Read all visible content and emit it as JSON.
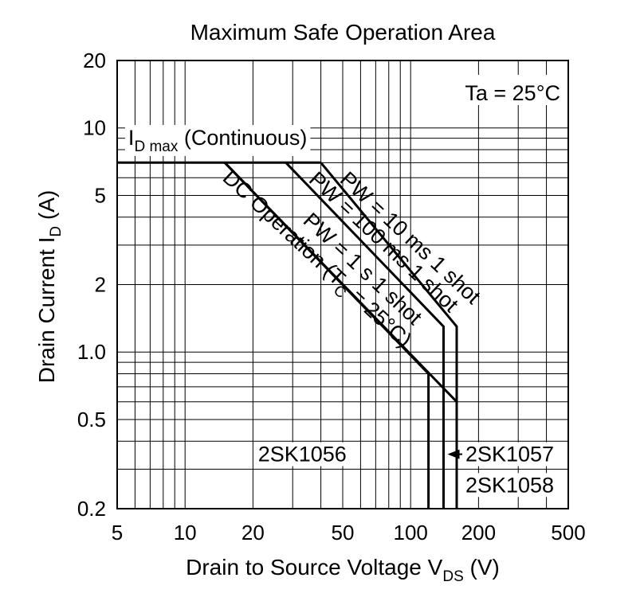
{
  "chart_data": {
    "type": "line",
    "title": "Maximum Safe Operation Area",
    "xlabel": {
      "main": "Drain to Source Voltage  V",
      "sub": "DS",
      "unit": "  (V)"
    },
    "ylabel": {
      "main": "Drain Current  I",
      "sub": "D",
      "unit": "  (A)"
    },
    "x_scale": "log",
    "y_scale": "log",
    "xlim": [
      5,
      500
    ],
    "ylim": [
      0.2,
      20
    ],
    "x_ticks": [
      {
        "value": 5,
        "label": "5"
      },
      {
        "value": 10,
        "label": "10"
      },
      {
        "value": 20,
        "label": "20"
      },
      {
        "value": 50,
        "label": "50"
      },
      {
        "value": 100,
        "label": "100"
      },
      {
        "value": 200,
        "label": "200"
      },
      {
        "value": 500,
        "label": "500"
      }
    ],
    "y_ticks": [
      {
        "value": 0.2,
        "label": "0.2"
      },
      {
        "value": 0.5,
        "label": "0.5"
      },
      {
        "value": 1.0,
        "label": "1.0"
      },
      {
        "value": 2,
        "label": "2"
      },
      {
        "value": 5,
        "label": "5"
      },
      {
        "value": 10,
        "label": "10"
      },
      {
        "value": 20,
        "label": "20"
      }
    ],
    "grid": true,
    "condition": "Ta = 25°C",
    "series": [
      {
        "id": "idmax",
        "points": [
          [
            5,
            7
          ],
          [
            40,
            7
          ]
        ]
      },
      {
        "id": "pw10ms",
        "points": [
          [
            40,
            7
          ],
          [
            160,
            1.3
          ],
          [
            160,
            0.2
          ]
        ]
      },
      {
        "id": "pw100ms",
        "points": [
          [
            28,
            7
          ],
          [
            140,
            1.3
          ],
          [
            140,
            0.2
          ]
        ]
      },
      {
        "id": "pw1s",
        "points": [
          [
            15,
            7
          ],
          [
            160,
            0.6
          ],
          [
            160,
            0.2
          ]
        ]
      },
      {
        "id": "dc",
        "points": [
          [
            15,
            7
          ],
          [
            120,
            0.8
          ],
          [
            120,
            0.2
          ]
        ]
      }
    ],
    "annotations": [
      {
        "id": "idmax",
        "text_main": "I",
        "text_sub": "D max",
        "text_rest": " (Continuous)",
        "x": 5.6,
        "y": 8.4
      },
      {
        "id": "pw10ms",
        "text": "PW = 10 ms  1 shot",
        "x": 48,
        "y": 5.8,
        "angle": 43
      },
      {
        "id": "pw100ms",
        "text": "PW = 100 ms  1 shot",
        "x": 35,
        "y": 5.8,
        "angle": 43
      },
      {
        "id": "pw1s",
        "text": "PW = 1 s  1 shot",
        "x": 33,
        "y": 3.8,
        "angle": 43
      },
      {
        "id": "dc",
        "text_main": "DC Operation (T",
        "text_sub": "C",
        "text_rest": " = 25°C)",
        "x": 14.5,
        "y": 5.9,
        "angle": 43
      }
    ],
    "device_labels": [
      {
        "id": "sk1056",
        "text": "2SK1056",
        "x": 52,
        "y": 0.35
      },
      {
        "id": "sk1057",
        "text": "2SK1057",
        "x": 175,
        "y": 0.35
      },
      {
        "id": "sk1058",
        "text": "2SK1058",
        "x": 175,
        "y": 0.255
      }
    ]
  }
}
